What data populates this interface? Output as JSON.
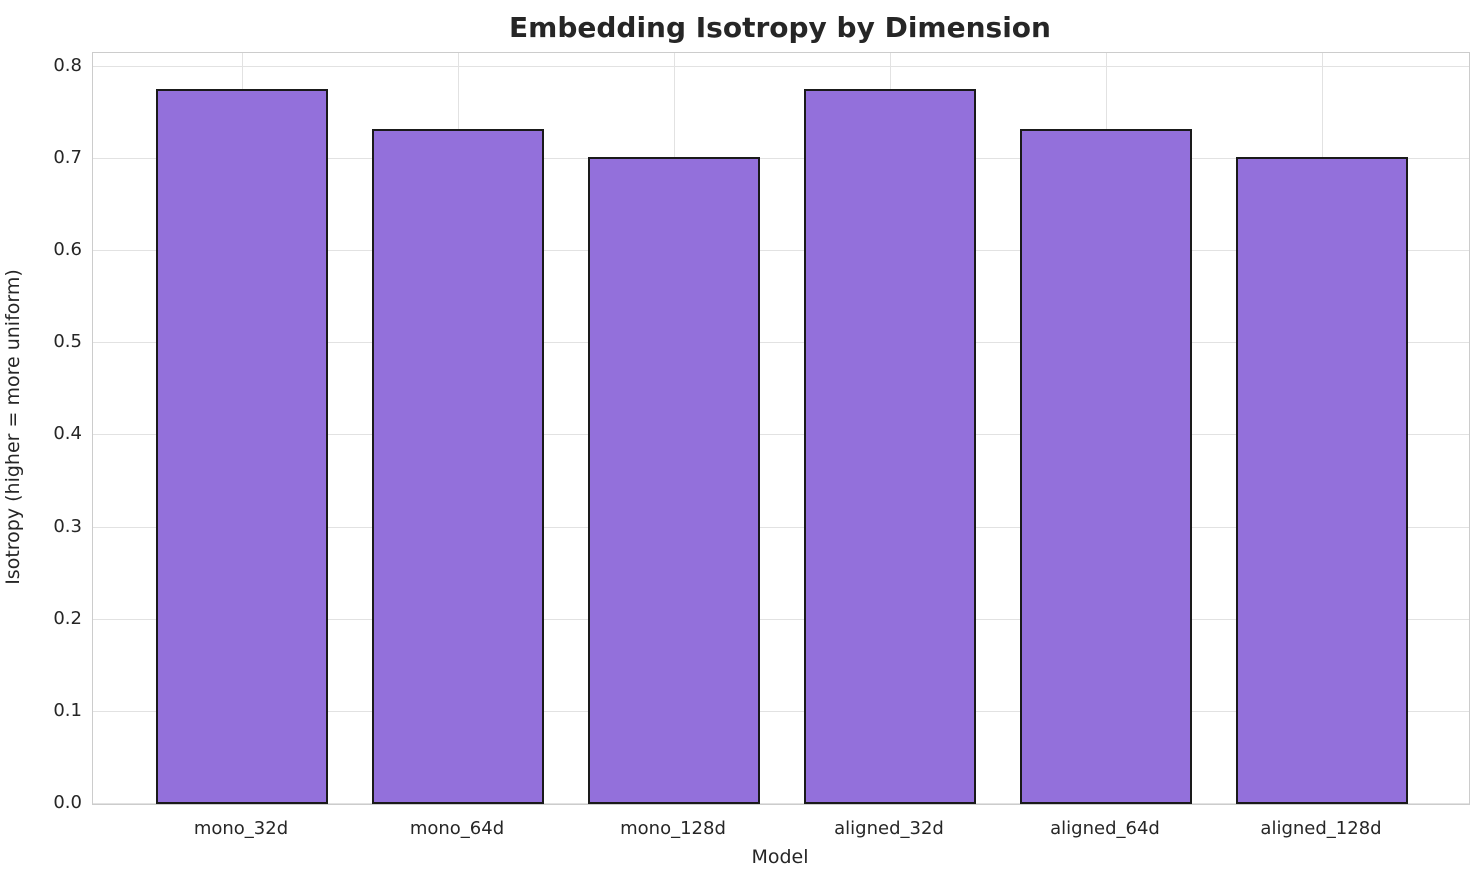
{
  "chart_data": {
    "type": "bar",
    "title": "Embedding Isotropy by Dimension",
    "xlabel": "Model",
    "ylabel": "Isotropy (higher = more uniform)",
    "categories": [
      "mono_32d",
      "mono_64d",
      "mono_128d",
      "aligned_32d",
      "aligned_64d",
      "aligned_128d"
    ],
    "values": [
      0.776,
      0.732,
      0.702,
      0.776,
      0.732,
      0.702
    ],
    "ylim": [
      0,
      0.815
    ],
    "yticks": [
      0.0,
      0.1,
      0.2,
      0.3,
      0.4,
      0.5,
      0.6,
      0.7,
      0.8
    ],
    "ytick_labels": [
      "0.0",
      "0.1",
      "0.2",
      "0.3",
      "0.4",
      "0.5",
      "0.6",
      "0.7",
      "0.8"
    ],
    "bar_color": "#9370DB",
    "bar_edge_color": "#1a1a1a",
    "grid": true,
    "grid_color": "#e2e2e2",
    "legend": false,
    "title_color": "#262626",
    "text_color": "#262626",
    "background_color": "#ffffff"
  }
}
